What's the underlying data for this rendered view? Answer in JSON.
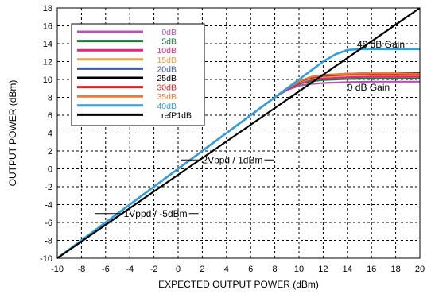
{
  "chart_data": {
    "type": "line",
    "title": "",
    "xlabel": "EXPECTED OUTPUT POWER (dBm)",
    "ylabel": "OUTPUT POWER  (dBm)",
    "xlim": [
      -10,
      20
    ],
    "ylim": [
      -10,
      18
    ],
    "xticks": [
      -10,
      -8,
      -6,
      -4,
      -2,
      0,
      2,
      4,
      6,
      8,
      10,
      12,
      14,
      16,
      18,
      20
    ],
    "yticks": [
      -10,
      -8,
      -6,
      -4,
      -2,
      0,
      2,
      4,
      6,
      8,
      10,
      12,
      14,
      16,
      18
    ],
    "grid": true,
    "legend_position": "top-left",
    "series": [
      {
        "name": "0dB",
        "color": "#b455b4",
        "x": [
          -10,
          8,
          9,
          10,
          11,
          12,
          14,
          16,
          18,
          20
        ],
        "y": [
          -10,
          8,
          8.8,
          9.3,
          9.5,
          9.6,
          9.7,
          9.75,
          9.75,
          9.75
        ]
      },
      {
        "name": "5dB",
        "color": "#1a7a3c",
        "x": [
          -10,
          8,
          9,
          10,
          11,
          12,
          14,
          16,
          18,
          20
        ],
        "y": [
          -10,
          8,
          8.9,
          9.5,
          9.8,
          9.95,
          10.05,
          10.1,
          10.1,
          10.1
        ]
      },
      {
        "name": "10dB",
        "color": "#e0287a",
        "x": [
          -10,
          8,
          9,
          10,
          11,
          12,
          14,
          16,
          18,
          20
        ],
        "y": [
          -10,
          8,
          8.9,
          9.6,
          9.95,
          10.1,
          10.25,
          10.3,
          10.3,
          10.3
        ]
      },
      {
        "name": "15dB",
        "color": "#f0a030",
        "x": [
          -10,
          8,
          9,
          10,
          11,
          12,
          14,
          16,
          18,
          20
        ],
        "y": [
          -10,
          8,
          9,
          9.7,
          10.1,
          10.3,
          10.45,
          10.5,
          10.5,
          10.5
        ]
      },
      {
        "name": "20dB",
        "color": "#3a5aa8",
        "x": [
          -10,
          8,
          9,
          10,
          11,
          12,
          14,
          16,
          18,
          20
        ],
        "y": [
          -10,
          8,
          9,
          9.75,
          10.2,
          10.4,
          10.55,
          10.6,
          10.6,
          10.6
        ]
      },
      {
        "name": "25dB",
        "color": "#000000",
        "x": [
          -10,
          8,
          9,
          10,
          11,
          12,
          14,
          16,
          18,
          20
        ],
        "y": [
          -10,
          8,
          9,
          9.8,
          10.25,
          10.45,
          10.65,
          10.7,
          10.7,
          10.7
        ]
      },
      {
        "name": "30dB",
        "color": "#e02020",
        "x": [
          -10,
          8,
          9,
          10,
          11,
          12,
          14,
          16,
          18,
          20
        ],
        "y": [
          -10,
          8,
          9,
          9.8,
          10.25,
          10.45,
          10.6,
          10.6,
          10.55,
          10.55
        ]
      },
      {
        "name": "35dB",
        "color": "#f07830",
        "x": [
          -10,
          8,
          9,
          10,
          11,
          12,
          14,
          16,
          18,
          20
        ],
        "y": [
          -10,
          8,
          9,
          9.8,
          10.3,
          10.5,
          10.65,
          10.7,
          10.7,
          10.65
        ]
      },
      {
        "name": "40dB",
        "color": "#30a0e0",
        "x": [
          -10,
          8,
          9,
          10,
          11,
          12,
          13,
          14,
          15,
          16,
          18,
          20
        ],
        "y": [
          -10,
          8,
          9,
          10,
          11,
          12,
          12.8,
          13.3,
          13.4,
          13.4,
          13.4,
          13.4
        ]
      },
      {
        "name": "refP1dB",
        "color": "#000000",
        "x": [
          -10,
          20
        ],
        "y": [
          -10,
          18
        ]
      }
    ],
    "annotations": [
      {
        "text": "40 dB Gain",
        "x": 14.8,
        "y": 13.9
      },
      {
        "text": "0 dB Gain",
        "x": 14.0,
        "y": 9.1
      },
      {
        "text": "2Vppd / 1dBm",
        "x": 2.0,
        "y": 1.0
      },
      {
        "text": "1Vppd / -5dBm",
        "x": -4.5,
        "y": -5.0
      }
    ]
  }
}
